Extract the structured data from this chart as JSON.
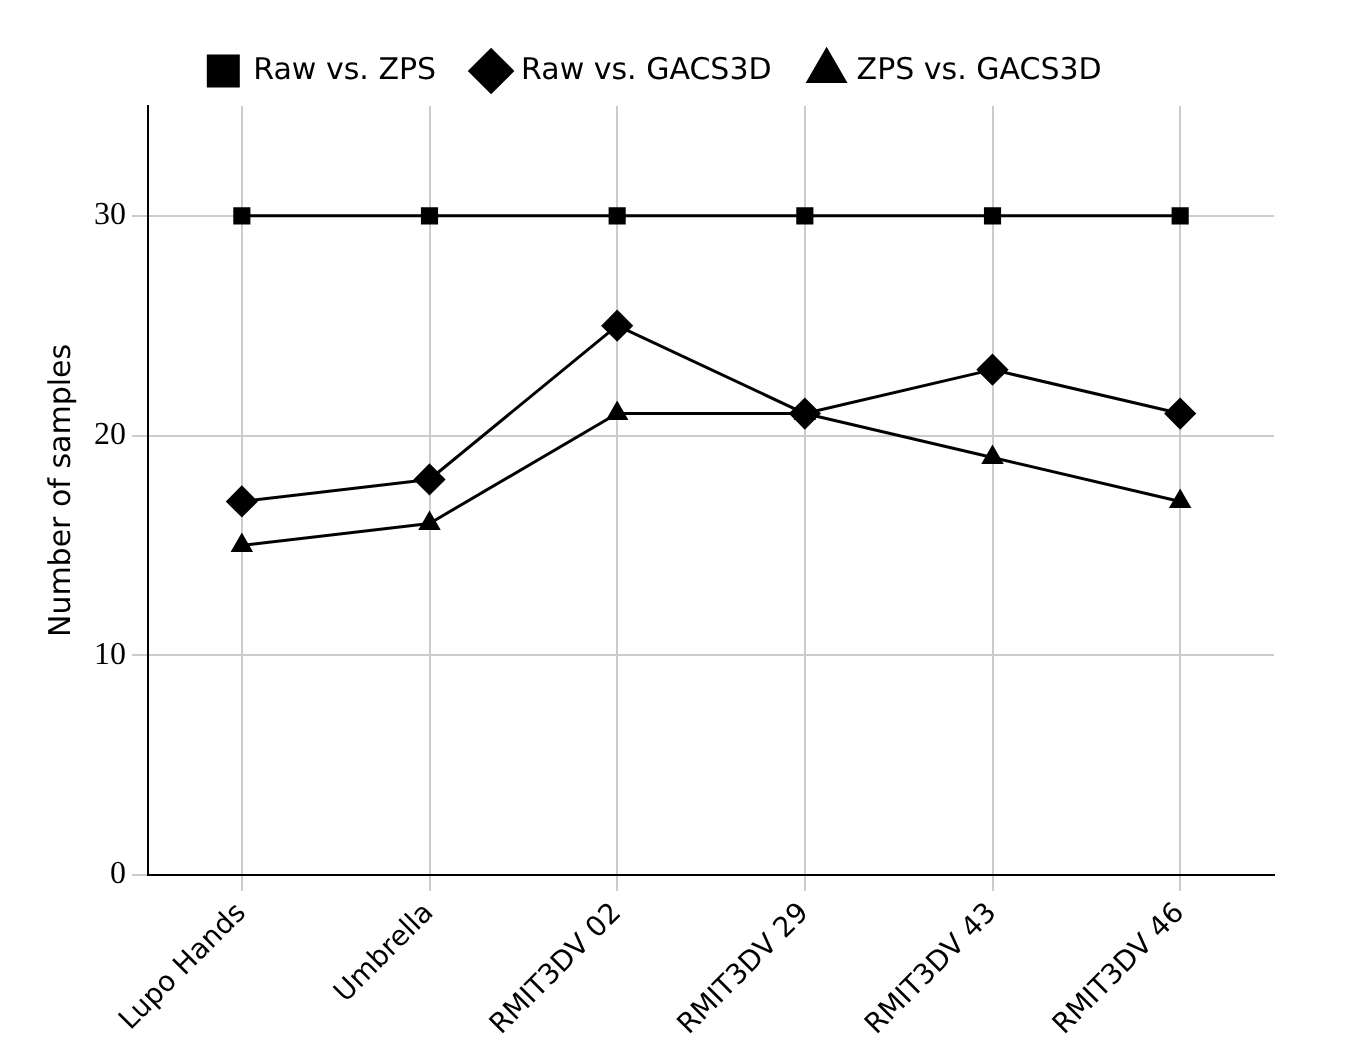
{
  "chart_data": {
    "type": "line",
    "ylabel": "Number of samples",
    "categories": [
      "Lupo Hands",
      "Umbrella",
      "RMIT3DV 02",
      "RMIT3DV 29",
      "RMIT3DV 43",
      "RMIT3DV 46"
    ],
    "series": [
      {
        "name": "Raw vs. ZPS",
        "color": "#000000",
        "marker": "square",
        "values": [
          30,
          30,
          30,
          30,
          30,
          30
        ]
      },
      {
        "name": "Raw vs. GACS3D",
        "color": "#000000",
        "marker": "diamond",
        "values": [
          17,
          18,
          25,
          21,
          23,
          21
        ]
      },
      {
        "name": "ZPS vs. GACS3D",
        "color": "#000000",
        "marker": "triangle",
        "values": [
          15,
          16,
          21,
          21,
          19,
          17
        ]
      }
    ],
    "ylim": [
      0,
      35
    ],
    "yticks": [
      0,
      10,
      20,
      30
    ],
    "grid": true,
    "legend": "top",
    "line_style": "solid"
  }
}
